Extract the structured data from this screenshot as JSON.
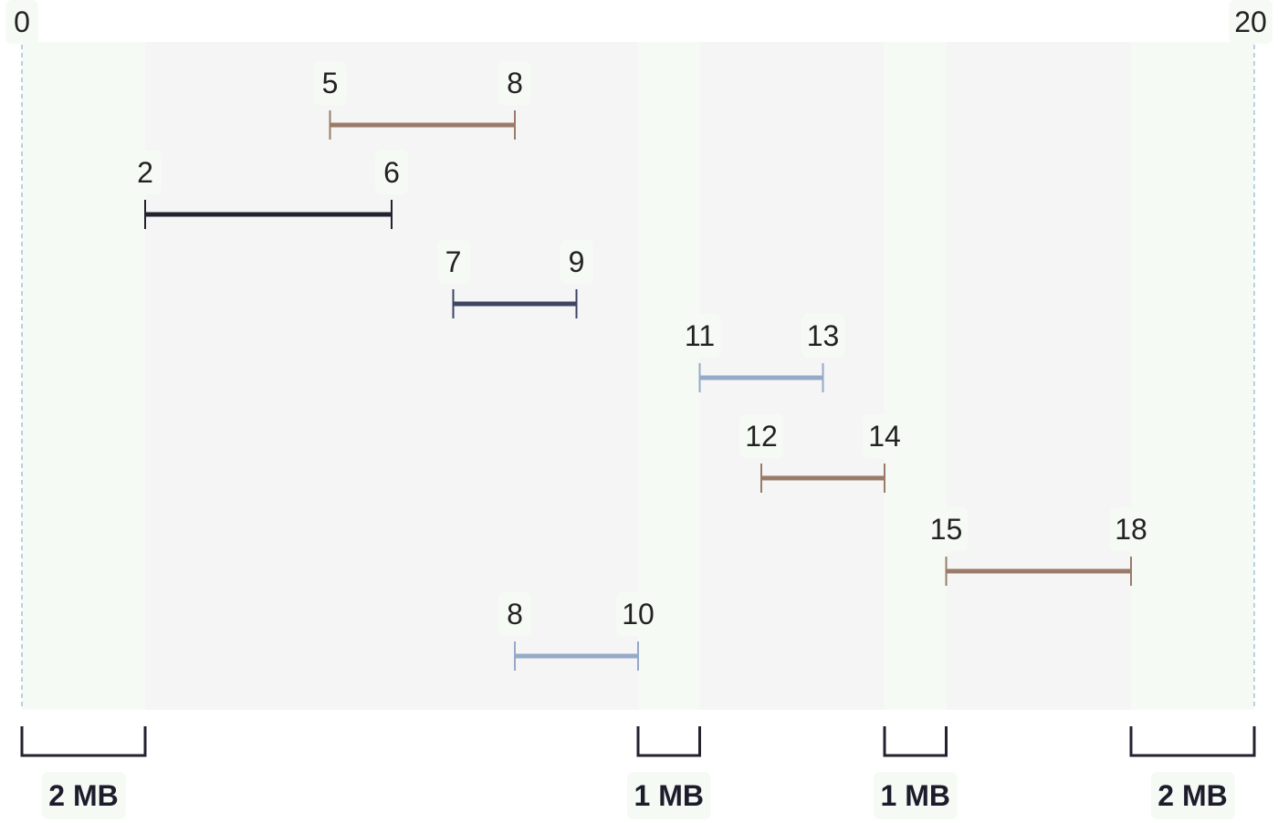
{
  "axis": {
    "min": 0,
    "max": 20,
    "min_label": "0",
    "max_label": "20"
  },
  "free_regions": [
    {
      "start": 0,
      "end": 2,
      "label": "2 MB"
    },
    {
      "start": 10,
      "end": 11,
      "label": "1 MB"
    },
    {
      "start": 14,
      "end": 15,
      "label": "1 MB"
    },
    {
      "start": 18,
      "end": 20,
      "label": "2 MB"
    }
  ],
  "used_regions": [
    {
      "start": 2,
      "end": 10
    },
    {
      "start": 11,
      "end": 14
    },
    {
      "start": 15,
      "end": 18
    }
  ],
  "intervals": [
    {
      "start": 5,
      "end": 8,
      "start_label": "5",
      "end_label": "8",
      "color": "#9a7b6a"
    },
    {
      "start": 2,
      "end": 6,
      "start_label": "2",
      "end_label": "6",
      "color": "#23222f"
    },
    {
      "start": 7,
      "end": 9,
      "start_label": "7",
      "end_label": "9",
      "color": "#3c4563"
    },
    {
      "start": 11,
      "end": 13,
      "start_label": "11",
      "end_label": "13",
      "color": "#95a9c8"
    },
    {
      "start": 12,
      "end": 14,
      "start_label": "12",
      "end_label": "14",
      "color": "#9a7b6a"
    },
    {
      "start": 15,
      "end": 18,
      "start_label": "15",
      "end_label": "18",
      "color": "#9a7b6a"
    },
    {
      "start": 8,
      "end": 10,
      "start_label": "8",
      "end_label": "10",
      "color": "#95a9c8"
    }
  ],
  "colors": {
    "free": "#f5fbf4",
    "used": "#f5f5f5",
    "bracket": "#23222f",
    "guide": "#9ec3e0"
  }
}
